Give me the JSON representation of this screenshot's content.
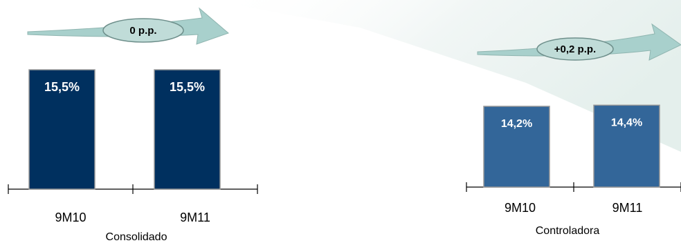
{
  "colors": {
    "consolidado_bar": "#00305F",
    "controladora_bar": "#336699",
    "bar_border": "#999999",
    "badge_fill": "#C0DCD8",
    "arrow_fill": "#A8D0CC",
    "background_decoration": "#EEF5F3"
  },
  "chart_data": [
    {
      "type": "bar",
      "categories": [
        "9M10",
        "9M11"
      ],
      "values": [
        15.5,
        15.5
      ],
      "data_labels": [
        "15,5%",
        "15,5%"
      ],
      "group_label": "Consolidado",
      "change_label": "0 p.p."
    },
    {
      "type": "bar",
      "categories": [
        "9M10",
        "9M11"
      ],
      "values": [
        14.2,
        14.4
      ],
      "data_labels": [
        "14,2%",
        "14,4%"
      ],
      "group_label": "Controladora",
      "change_label": "+0,2 p.p."
    }
  ]
}
